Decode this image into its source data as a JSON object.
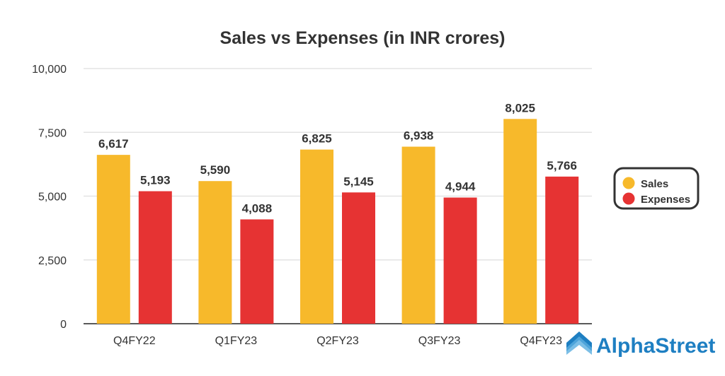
{
  "chart_data": {
    "type": "bar",
    "title": "Sales vs Expenses (in INR crores)",
    "xlabel": "",
    "ylabel": "",
    "categories": [
      "Q4FY22",
      "Q1FY23",
      "Q2FY23",
      "Q3FY23",
      "Q4FY23"
    ],
    "series": [
      {
        "name": "Sales",
        "color": "#f7b92b",
        "values": [
          6617,
          5590,
          6825,
          6938,
          8025
        ],
        "labels": [
          "6,617",
          "5,590",
          "6,825",
          "6,938",
          "8,025"
        ]
      },
      {
        "name": "Expenses",
        "color": "#e63333",
        "values": [
          5193,
          4088,
          5145,
          4944,
          5766
        ],
        "labels": [
          "5,193",
          "4,088",
          "5,145",
          "4,944",
          "5,766"
        ]
      }
    ],
    "ylim": [
      0,
      10000
    ],
    "yticks": [
      0,
      2500,
      5000,
      7500,
      10000
    ],
    "ytick_labels": [
      "0",
      "2,500",
      "5,000",
      "7,500",
      "10,000"
    ],
    "grid": true,
    "legend_position": "right"
  },
  "brand": {
    "name": "AlphaStreet",
    "color": "#1e7fc2"
  }
}
